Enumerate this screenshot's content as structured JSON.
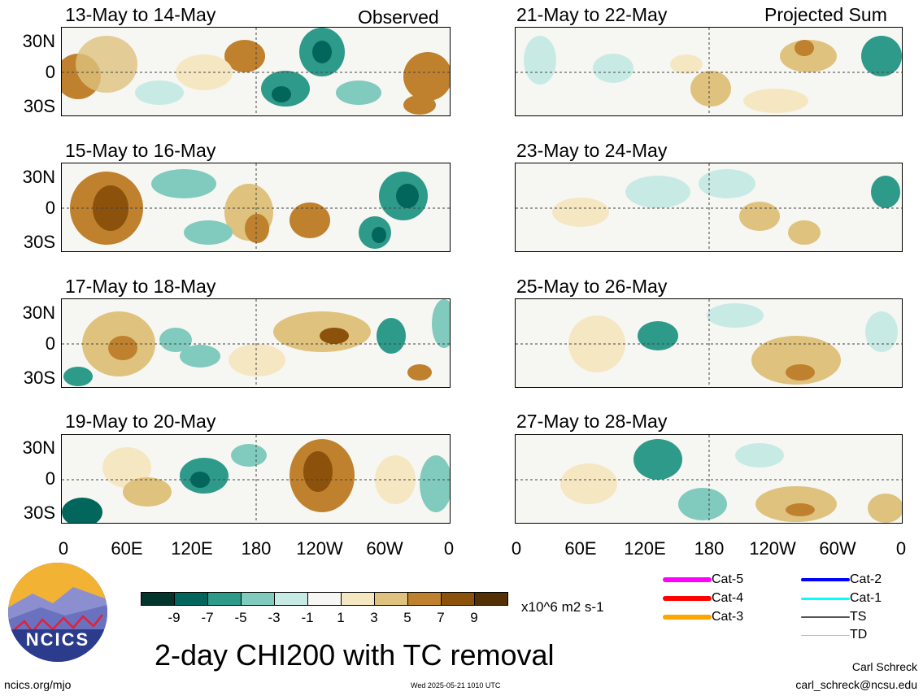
{
  "panels_left": [
    {
      "title": "13-May to 14-May",
      "tag": "Observed"
    },
    {
      "title": "15-May to 16-May",
      "tag": ""
    },
    {
      "title": "17-May to 18-May",
      "tag": ""
    },
    {
      "title": "19-May to 20-May",
      "tag": ""
    }
  ],
  "panels_right": [
    {
      "title": "21-May to 22-May",
      "tag": "Projected Sum"
    },
    {
      "title": "23-May to 24-May",
      "tag": ""
    },
    {
      "title": "25-May to 26-May",
      "tag": ""
    },
    {
      "title": "27-May to 28-May",
      "tag": ""
    }
  ],
  "lat_labels": [
    "30N",
    "0",
    "30S"
  ],
  "lon_labels": [
    "0",
    "60E",
    "120E",
    "180",
    "120W",
    "60W",
    "0"
  ],
  "colorbar": {
    "colors": [
      "#04352c",
      "#03665d",
      "#2e9a8a",
      "#80cbbd",
      "#c7ebe4",
      "#f6f6f2",
      "#f6e7c3",
      "#dfc27d",
      "#bf812d",
      "#8c510a",
      "#543005"
    ],
    "labels": [
      "-9",
      "-7",
      "-5",
      "-3",
      "-1",
      "1",
      "3",
      "5",
      "7",
      "9"
    ],
    "units": "x10^6 m2 s-1"
  },
  "legend": [
    {
      "label": "Cat-5",
      "color": "#ff00ff"
    },
    {
      "label": "Cat-4",
      "color": "#ff0000"
    },
    {
      "label": "Cat-3",
      "color": "#ffa500"
    },
    {
      "label": "Cat-2",
      "color": "#0000ff"
    },
    {
      "label": "Cat-1",
      "color": "#00ffff"
    },
    {
      "label": "TS",
      "color": "#555555"
    },
    {
      "label": "TD",
      "color": "#bbbbbb"
    }
  ],
  "main_title": "2-day CHI200 with TC removal",
  "logo_text": "NCICS",
  "footer": {
    "left": "ncics.org/mjo",
    "center": "Wed 2025-05-21 1010 UTC",
    "author": "Carl Schreck",
    "email": "carl_schreck@ncsu.edu"
  }
}
